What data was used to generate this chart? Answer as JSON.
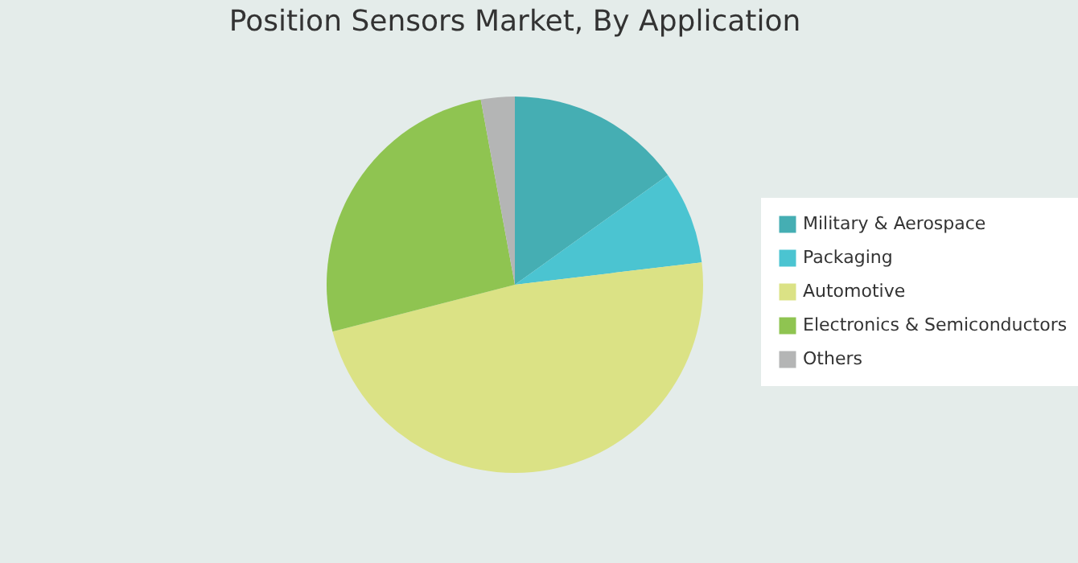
{
  "chart_data": {
    "type": "pie",
    "title": "Position Sensors Market, By Application",
    "categories": [
      "Military & Aerospace",
      "Packaging",
      "Automotive",
      "Electronics & Semiconductors",
      "Others"
    ],
    "values": [
      15.1,
      8.0,
      47.9,
      26.1,
      2.9
    ],
    "colors": [
      "#45aeb3",
      "#4bc4d1",
      "#dbe285",
      "#8fc451",
      "#b4b5b5"
    ],
    "legend": "right"
  }
}
